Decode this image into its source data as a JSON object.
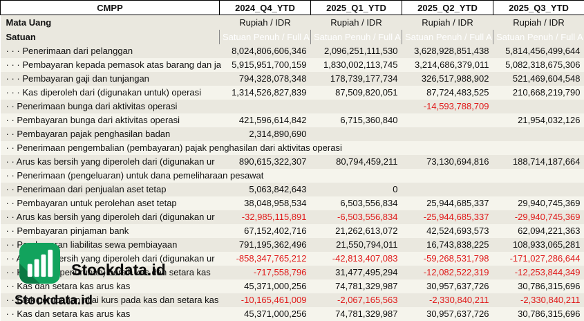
{
  "header": {
    "ticker": "CMPP",
    "columns": [
      "2024_Q4_YTD",
      "2025_Q1_YTD",
      "2025_Q2_YTD",
      "2025_Q3_YTD"
    ]
  },
  "currency": {
    "label": "Mata Uang",
    "values": [
      "Rupiah / IDR",
      "Rupiah / IDR",
      "Rupiah / IDR",
      "Rupiah / IDR"
    ]
  },
  "unit": {
    "label": "Satuan",
    "values": [
      "Satuan Penuh / Full A",
      "Satuan Penuh / Full A",
      "Satuan Penuh / Full A",
      "Satuan Penuh / Full A"
    ]
  },
  "rows": [
    {
      "label": "· · · Penerimaan dari pelanggan",
      "values": [
        "8,024,806,606,346",
        "2,096,251,111,530",
        "3,628,928,851,438",
        "5,814,456,499,644"
      ]
    },
    {
      "label": "· · · Pembayaran kepada pemasok atas barang dan ja",
      "values": [
        "5,915,951,700,159",
        "1,830,002,113,745",
        "3,214,686,379,011",
        "5,082,318,675,306"
      ]
    },
    {
      "label": "· · · Pembayaran gaji dan tunjangan",
      "values": [
        "794,328,078,348",
        "178,739,177,734",
        "326,517,988,902",
        "521,469,604,548"
      ]
    },
    {
      "label": "· · · Kas diperoleh dari (digunakan untuk) operasi",
      "values": [
        "1,314,526,827,839",
        "87,509,820,051",
        "87,724,483,525",
        "210,668,219,790"
      ]
    },
    {
      "label": "· · Penerimaan bunga dari aktivitas operasi",
      "values": [
        "",
        "",
        "-14,593,788,709",
        ""
      ]
    },
    {
      "label": "· · Pembayaran bunga dari aktivitas operasi",
      "values": [
        "421,596,614,842",
        "6,715,360,840",
        "",
        "21,954,032,126"
      ]
    },
    {
      "label": "· · Pembayaran pajak penghasilan badan",
      "values": [
        "2,314,890,690",
        "",
        "",
        ""
      ]
    },
    {
      "label": "· · Penerimaan pengembalian (pembayaran) pajak penghasilan dari aktivitas operasi",
      "values": [
        "",
        "",
        "",
        ""
      ]
    },
    {
      "label": "· · Arus kas bersih yang diperoleh dari (digunakan ur",
      "values": [
        "890,615,322,307",
        "80,794,459,211",
        "73,130,694,816",
        "188,714,187,664"
      ]
    },
    {
      "label": "· · Penerimaan (pengeluaran) untuk dana pemeliharaan pesawat",
      "values": [
        "",
        "",
        "",
        ""
      ]
    },
    {
      "label": "· · Penerimaan dari penjualan aset tetap",
      "values": [
        "5,063,842,643",
        "0",
        "",
        ""
      ]
    },
    {
      "label": "· · Pembayaran untuk perolehan aset tetap",
      "values": [
        "38,048,958,534",
        "6,503,556,834",
        "25,944,685,337",
        "29,940,745,369"
      ]
    },
    {
      "label": "· · Arus kas bersih yang diperoleh dari (digunakan ur",
      "values": [
        "-32,985,115,891",
        "-6,503,556,834",
        "-25,944,685,337",
        "-29,940,745,369"
      ]
    },
    {
      "label": "· · Pembayaran pinjaman bank",
      "values": [
        "67,152,402,716",
        "21,262,613,072",
        "42,524,693,573",
        "62,094,221,363"
      ]
    },
    {
      "label": "· · Pembayaran liabilitas sewa pembiayaan",
      "values": [
        "791,195,362,496",
        "21,550,794,011",
        "16,743,838,225",
        "108,933,065,281"
      ]
    },
    {
      "label": "· · Arus kas bersih yang diperoleh dari (digunakan ur",
      "values": [
        "-858,347,765,212",
        "-42,813,407,083",
        "-59,268,531,798",
        "-171,027,286,644"
      ]
    },
    {
      "label": "· · Kenaikan (penurunan) bersih kas dan setara kas",
      "values": [
        "-717,558,796",
        "31,477,495,294",
        "-12,082,522,319",
        "-12,253,844,349"
      ]
    },
    {
      "label": "· · Kas dan setara kas arus kas",
      "values": [
        "45,371,000,256",
        "74,781,329,987",
        "30,957,637,726",
        "30,786,315,696"
      ]
    },
    {
      "label": "· · Efek perubahan nilai kurs pada kas dan setara kas",
      "values": [
        "-10,165,461,009",
        "-2,067,165,563",
        "-2,330,840,211",
        "-2,330,840,211"
      ]
    },
    {
      "label": "· · Kas dan setara kas arus kas",
      "values": [
        "45,371,000,256",
        "74,781,329,987",
        "30,957,637,726",
        "30,786,315,696"
      ]
    }
  ],
  "watermark": {
    "brand_primary": "Stockdata.id",
    "brand_secondary": "Stockdata.id"
  },
  "colors": {
    "negative": "#e01a1a",
    "unit_bg": "#6e6e6e",
    "stripe_dark": "#eae8df",
    "stripe_light": "#f5f4ec",
    "accent": "#12a35d",
    "accent_dark": "#0a7a43"
  }
}
